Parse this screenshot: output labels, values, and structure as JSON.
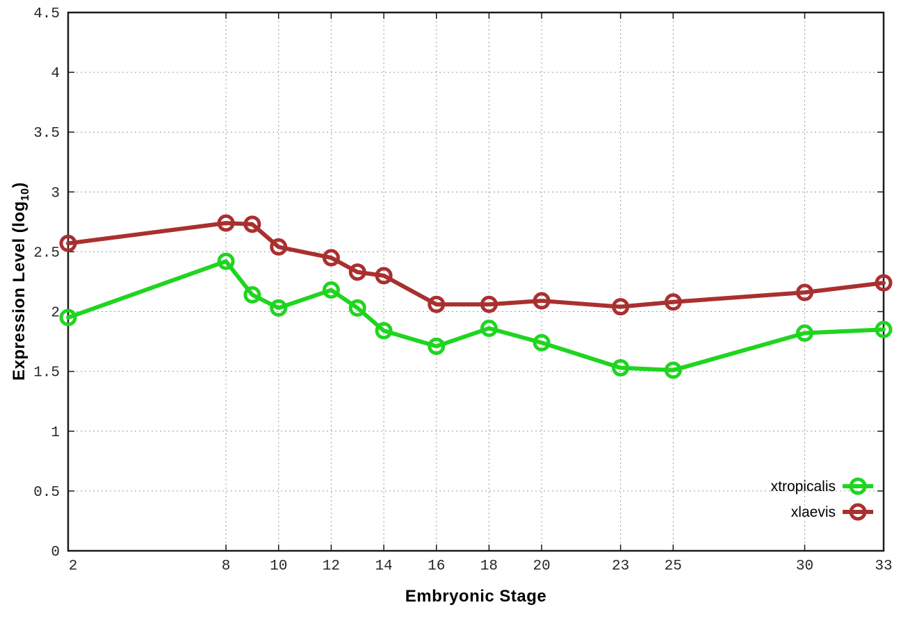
{
  "chart_data": {
    "type": "line",
    "title": "",
    "xlabel": "Embryonic Stage",
    "ylabel": "Expression Level (log10)",
    "ylabel_prefix": "Expression Level (log",
    "ylabel_sub": "10",
    "ylabel_suffix": ")",
    "x": [
      2,
      8,
      9,
      10,
      12,
      13,
      14,
      16,
      18,
      20,
      23,
      25,
      30,
      33
    ],
    "series": [
      {
        "name": "xtropicalis",
        "color": "#1fd51f",
        "marker": "open-circle",
        "values": [
          1.95,
          2.42,
          2.14,
          2.03,
          2.18,
          2.03,
          1.84,
          1.71,
          1.86,
          1.74,
          1.53,
          1.51,
          1.82,
          1.85
        ]
      },
      {
        "name": "xlaevis",
        "color": "#a93030",
        "marker": "open-circle",
        "values": [
          2.57,
          2.74,
          2.73,
          2.54,
          2.45,
          2.33,
          2.3,
          2.06,
          2.06,
          2.09,
          2.04,
          2.08,
          2.16,
          2.24
        ]
      }
    ],
    "xticks": [
      2,
      8,
      10,
      12,
      14,
      16,
      18,
      20,
      23,
      25,
      30,
      33
    ],
    "yticks": [
      0,
      0.5,
      1,
      1.5,
      2,
      2.5,
      3,
      3.5,
      4,
      4.5
    ],
    "xlim": [
      2,
      33
    ],
    "ylim": [
      0,
      4.5
    ],
    "grid": true,
    "grid_style": "dotted",
    "grid_color": "#9a9a9a",
    "axis_color": "#1a1a1a",
    "background_color": "#ffffff",
    "legend_position": "bottom-right",
    "legend_border": false
  }
}
